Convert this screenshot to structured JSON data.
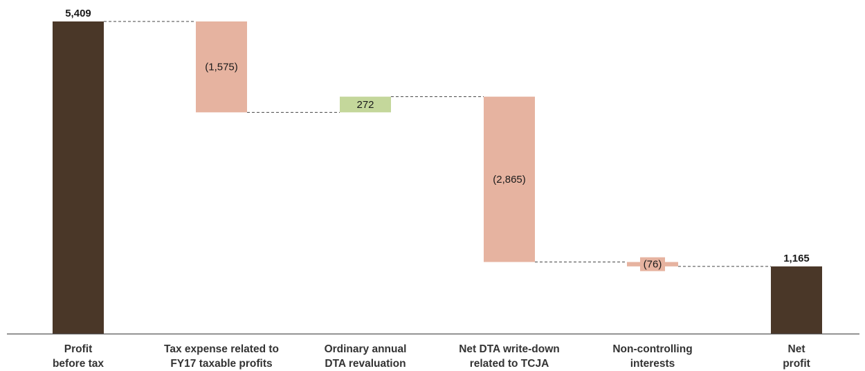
{
  "chart_data": {
    "type": "waterfall",
    "categories": [
      [
        "Profit",
        "before tax"
      ],
      [
        "Tax expense related to",
        "FY17 taxable profits"
      ],
      [
        "Ordinary annual",
        "DTA revaluation"
      ],
      [
        "Net DTA write-down",
        "related to TCJA"
      ],
      [
        "Non-controlling",
        "interests"
      ],
      [
        "Net",
        "profit"
      ]
    ],
    "steps": [
      {
        "kind": "total",
        "value": 5409,
        "label": "5,409"
      },
      {
        "kind": "delta",
        "value": -1575,
        "label": "(1,575)"
      },
      {
        "kind": "delta",
        "value": 272,
        "label": "272"
      },
      {
        "kind": "delta",
        "value": -2865,
        "label": "(2,865)"
      },
      {
        "kind": "delta",
        "value": -76,
        "label": "(76)"
      },
      {
        "kind": "total",
        "value": 1165,
        "label": "1,165"
      }
    ],
    "ylim": [
      0,
      5409
    ],
    "colors": {
      "total": "#4a3728",
      "decrease": "#e6b3a0",
      "increase": "#c4d79b"
    },
    "connectors": "dashed",
    "grid": false,
    "legend": "none"
  }
}
